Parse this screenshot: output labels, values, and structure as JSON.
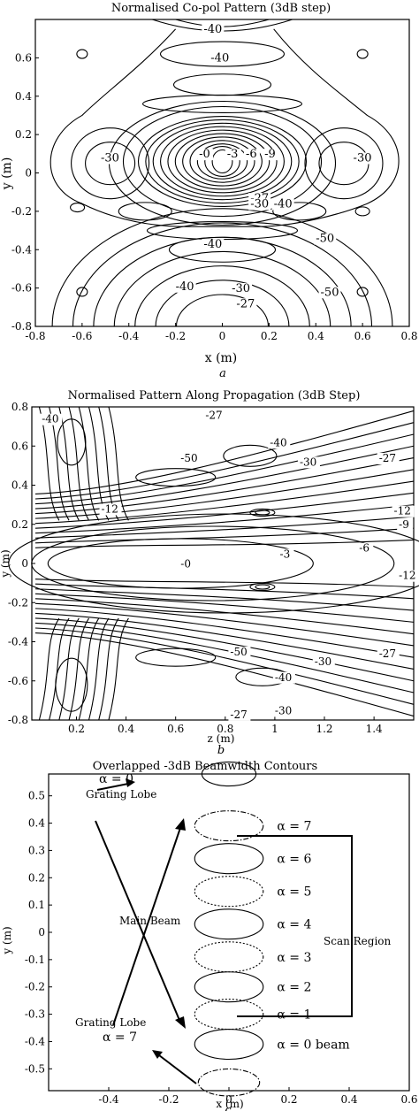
{
  "chart_data": [
    {
      "type": "contour",
      "panel": "a",
      "title": "Normalised Co-pol Pattern (3dB step)",
      "xlabel": "x (m)",
      "ylabel": "y (m)",
      "xlim": [
        -0.8,
        0.8
      ],
      "ylim": [
        -0.8,
        0.8
      ],
      "xticks": [
        "-0.8",
        "-0.6",
        "-0.4",
        "-0.2",
        "0",
        "0.2",
        "0.4",
        "0.6",
        "0.8"
      ],
      "yticks": [
        "0.6",
        "0.4",
        "0.2",
        "0",
        "-0.2",
        "-0.4",
        "-0.6",
        "-0.8"
      ],
      "contour_labels": [
        {
          "text": "-40",
          "x": -0.08,
          "y": 0.73
        },
        {
          "text": "-40",
          "x": -0.05,
          "y": 0.58
        },
        {
          "text": "-30",
          "x": -0.52,
          "y": 0.06
        },
        {
          "text": "-30",
          "x": 0.56,
          "y": 0.06
        },
        {
          "text": "-0",
          "x": -0.1,
          "y": 0.08
        },
        {
          "text": "-3",
          "x": 0.02,
          "y": 0.08
        },
        {
          "text": "-6",
          "x": 0.1,
          "y": 0.08
        },
        {
          "text": "-9",
          "x": 0.18,
          "y": 0.08
        },
        {
          "text": "-27",
          "x": 0.12,
          "y": -0.15
        },
        {
          "text": "-30",
          "x": 0.12,
          "y": -0.18
        },
        {
          "text": "-40",
          "x": 0.22,
          "y": -0.18
        },
        {
          "text": "-50",
          "x": 0.4,
          "y": -0.36
        },
        {
          "text": "-40",
          "x": -0.08,
          "y": -0.39
        },
        {
          "text": "-40",
          "x": -0.2,
          "y": -0.61
        },
        {
          "text": "-30",
          "x": 0.04,
          "y": -0.62
        },
        {
          "text": "-50",
          "x": 0.42,
          "y": -0.64
        },
        {
          "text": "-27",
          "x": 0.06,
          "y": -0.7
        }
      ],
      "grid": false
    },
    {
      "type": "contour",
      "panel": "b",
      "title": "Normalised Pattern Along Propagation (3dB Step)",
      "xlabel": "z (m)",
      "ylabel": "y (m)",
      "xlim": [
        0.02,
        1.56
      ],
      "ylim": [
        -0.8,
        0.8
      ],
      "xticks": [
        "0.2",
        "0.4",
        "0.6",
        "0.8",
        "1",
        "1.2",
        "1.4"
      ],
      "yticks": [
        "0.8",
        "0.6",
        "0.4",
        "0.2",
        "0",
        "-0.2",
        "-0.4",
        "-0.6",
        "-0.8"
      ],
      "contour_labels": [
        {
          "text": "-40",
          "x": 0.06,
          "y": 0.72
        },
        {
          "text": "-27",
          "x": 0.72,
          "y": 0.74
        },
        {
          "text": "-40",
          "x": 0.98,
          "y": 0.6
        },
        {
          "text": "-50",
          "x": 0.62,
          "y": 0.52
        },
        {
          "text": "-30",
          "x": 1.1,
          "y": 0.5
        },
        {
          "text": "-27",
          "x": 1.42,
          "y": 0.52
        },
        {
          "text": "-12",
          "x": 0.3,
          "y": 0.26
        },
        {
          "text": "-12",
          "x": 1.48,
          "y": 0.25
        },
        {
          "text": "-9",
          "x": 1.5,
          "y": 0.18
        },
        {
          "text": "-0",
          "x": 0.62,
          "y": -0.02
        },
        {
          "text": "-3",
          "x": 1.02,
          "y": 0.03
        },
        {
          "text": "-6",
          "x": 1.34,
          "y": 0.06
        },
        {
          "text": "-12",
          "x": 1.5,
          "y": -0.08
        },
        {
          "text": "-50",
          "x": 0.82,
          "y": -0.47
        },
        {
          "text": "-27",
          "x": 1.42,
          "y": -0.48
        },
        {
          "text": "-30",
          "x": 1.16,
          "y": -0.52
        },
        {
          "text": "-40",
          "x": 1.0,
          "y": -0.6
        },
        {
          "text": "-30",
          "x": 1.0,
          "y": -0.77
        },
        {
          "text": "-27",
          "x": 0.82,
          "y": -0.79
        }
      ],
      "grid": false
    },
    {
      "type": "contour",
      "panel": "c",
      "title": "Overlapped -3dB Beamwidth Contours",
      "xlabel": "x (m)",
      "ylabel": "y (m)",
      "xlim": [
        -0.6,
        0.6
      ],
      "ylim": [
        -0.58,
        0.58
      ],
      "xticks": [
        "-0.4",
        "-0.2",
        "0",
        "0.2",
        "0.4",
        "0.6"
      ],
      "yticks": [
        "0.5",
        "0.4",
        "0.3",
        "0.2",
        "0.1",
        "0",
        "-0.1",
        "-0.2",
        "-0.3",
        "-0.4",
        "-0.5"
      ],
      "series": [
        {
          "name": "α = 0 beam",
          "center_y": -0.41,
          "style": "solid"
        },
        {
          "name": "α = 1",
          "center_y": -0.3,
          "style": "dotted"
        },
        {
          "name": "α = 2",
          "center_y": -0.2,
          "style": "solid"
        },
        {
          "name": "α = 3",
          "center_y": -0.09,
          "style": "dotted"
        },
        {
          "name": "α = 4",
          "center_y": 0.03,
          "style": "solid"
        },
        {
          "name": "α = 5",
          "center_y": 0.15,
          "style": "dotted"
        },
        {
          "name": "α = 6",
          "center_y": 0.27,
          "style": "solid"
        },
        {
          "name": "α = 7",
          "center_y": 0.39,
          "style": "dashdot"
        }
      ],
      "beam_half_width_x": 0.12,
      "beam_half_height_y": 0.055,
      "annotations": {
        "alpha0_label": "α = 0",
        "grating_lobe_top": "Grating Lobe",
        "main_beam": "Main Beam",
        "grating_lobe_bottom": "Grating Lobe",
        "alpha7_label": "α = 7",
        "scan_region": "Scan Region"
      },
      "grid": false
    }
  ],
  "panel_letters": [
    "a",
    "b",
    "c"
  ]
}
